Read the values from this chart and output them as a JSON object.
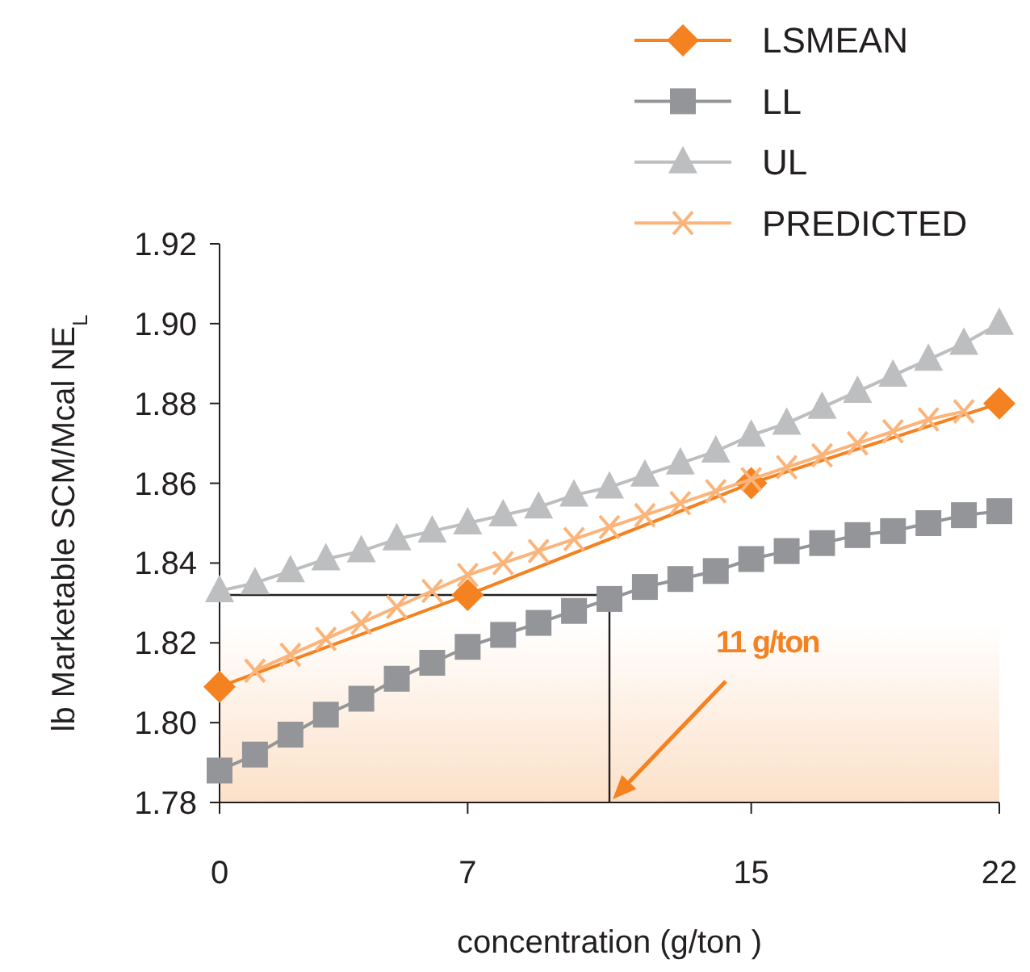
{
  "chart_data": {
    "type": "line",
    "xlabel": "concentration (g/ton )",
    "ylabel": "lb Marketable SCM/Mcal NE$_{L}$",
    "xlim": [
      0,
      22
    ],
    "xticks": [
      0,
      7,
      15,
      22
    ],
    "ylim": [
      1.78,
      1.92
    ],
    "yticks": [
      1.78,
      {
        "value": 1.8,
        "label": "1.80"
      },
      1.82,
      1.84,
      1.86,
      1.88,
      {
        "value": 1.9,
        "label": "1.90"
      },
      1.92
    ],
    "grid": false,
    "legend": "top right",
    "line_style": "solid",
    "series": [
      {
        "name": "LSMEAN",
        "color": "#f58220",
        "marker": "diamond",
        "x": [
          0,
          7,
          15,
          22
        ],
        "values": [
          1.809,
          1.832,
          1.86,
          1.88
        ]
      },
      {
        "name": "LL",
        "color": "#939598",
        "marker": "square",
        "x": [
          0,
          1,
          2,
          3,
          4,
          5,
          6,
          7,
          8,
          9,
          10,
          11,
          12,
          13,
          14,
          15,
          16,
          17,
          18,
          19,
          20,
          21,
          22
        ],
        "values": [
          1.788,
          1.792,
          1.797,
          1.802,
          1.806,
          1.811,
          1.815,
          1.819,
          1.822,
          1.825,
          1.828,
          1.831,
          1.834,
          1.836,
          1.838,
          1.841,
          1.843,
          1.845,
          1.847,
          1.848,
          1.85,
          1.852,
          1.853
        ]
      },
      {
        "name": "UL",
        "color": "#bcbec0",
        "marker": "triangle",
        "x": [
          0,
          1,
          2,
          3,
          4,
          5,
          6,
          7,
          8,
          9,
          10,
          11,
          12,
          13,
          14,
          15,
          16,
          17,
          18,
          19,
          20,
          21,
          22
        ],
        "values": [
          1.833,
          1.835,
          1.838,
          1.841,
          1.843,
          1.846,
          1.848,
          1.85,
          1.852,
          1.854,
          1.857,
          1.859,
          1.862,
          1.865,
          1.868,
          1.872,
          1.875,
          1.879,
          1.883,
          1.887,
          1.891,
          1.895,
          1.9
        ]
      },
      {
        "name": "PREDICTED",
        "color": "#fbb47a",
        "marker": "cross",
        "x": [
          1,
          2,
          3,
          4,
          5,
          6,
          7,
          8,
          9,
          10,
          11,
          12,
          13,
          14,
          15,
          16,
          17,
          18,
          19,
          20,
          21
        ],
        "values": [
          1.813,
          1.817,
          1.821,
          1.825,
          1.829,
          1.833,
          1.837,
          1.84,
          1.843,
          1.846,
          1.849,
          1.852,
          1.855,
          1.858,
          1.861,
          1.864,
          1.867,
          1.87,
          1.873,
          1.876,
          1.878
        ]
      }
    ],
    "ref_lines": [
      {
        "axis": "x",
        "value": 11,
        "color": "#231f20"
      },
      {
        "axis": "y",
        "value": 1.832,
        "color": "#231f20"
      }
    ],
    "bands": [
      {
        "axis": "y",
        "from": 1.78,
        "to": 1.825,
        "color": "#fbd9bb"
      }
    ],
    "annotations": [
      "11 g/ton"
    ]
  }
}
